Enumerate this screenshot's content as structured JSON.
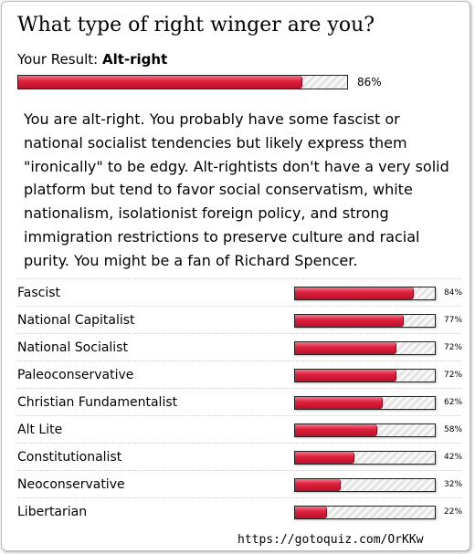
{
  "quiz": {
    "title": "What type of right winger are you?",
    "result_label": "Your Result:",
    "result_value": "Alt-right",
    "result_percent": 86,
    "result_percent_text": "86%",
    "description": "You are alt-right. You probably have some fascist or national socialist tendencies but likely express them \"ironically\" to be edgy. Alt-rightists don't have a very solid platform but tend to favor social conservatism, white nationalism, isolationist foreign policy, and strong immigration restrictions to preserve culture and racial purity. You might be a fan of Richard Spencer.",
    "results": [
      {
        "label": "Fascist",
        "percent": 84,
        "percent_text": "84%"
      },
      {
        "label": "National Capitalist",
        "percent": 77,
        "percent_text": "77%"
      },
      {
        "label": "National Socialist",
        "percent": 72,
        "percent_text": "72%"
      },
      {
        "label": "Paleoconservative",
        "percent": 72,
        "percent_text": "72%"
      },
      {
        "label": "Christian Fundamentalist",
        "percent": 62,
        "percent_text": "62%"
      },
      {
        "label": "Alt Lite",
        "percent": 58,
        "percent_text": "58%"
      },
      {
        "label": "Constitutionalist",
        "percent": 42,
        "percent_text": "42%"
      },
      {
        "label": "Neoconservative",
        "percent": 32,
        "percent_text": "32%"
      },
      {
        "label": "Libertarian",
        "percent": 22,
        "percent_text": "22%"
      }
    ],
    "url": "https://gotoquiz.com/OrKKw",
    "bar_color": "#e0213f"
  }
}
